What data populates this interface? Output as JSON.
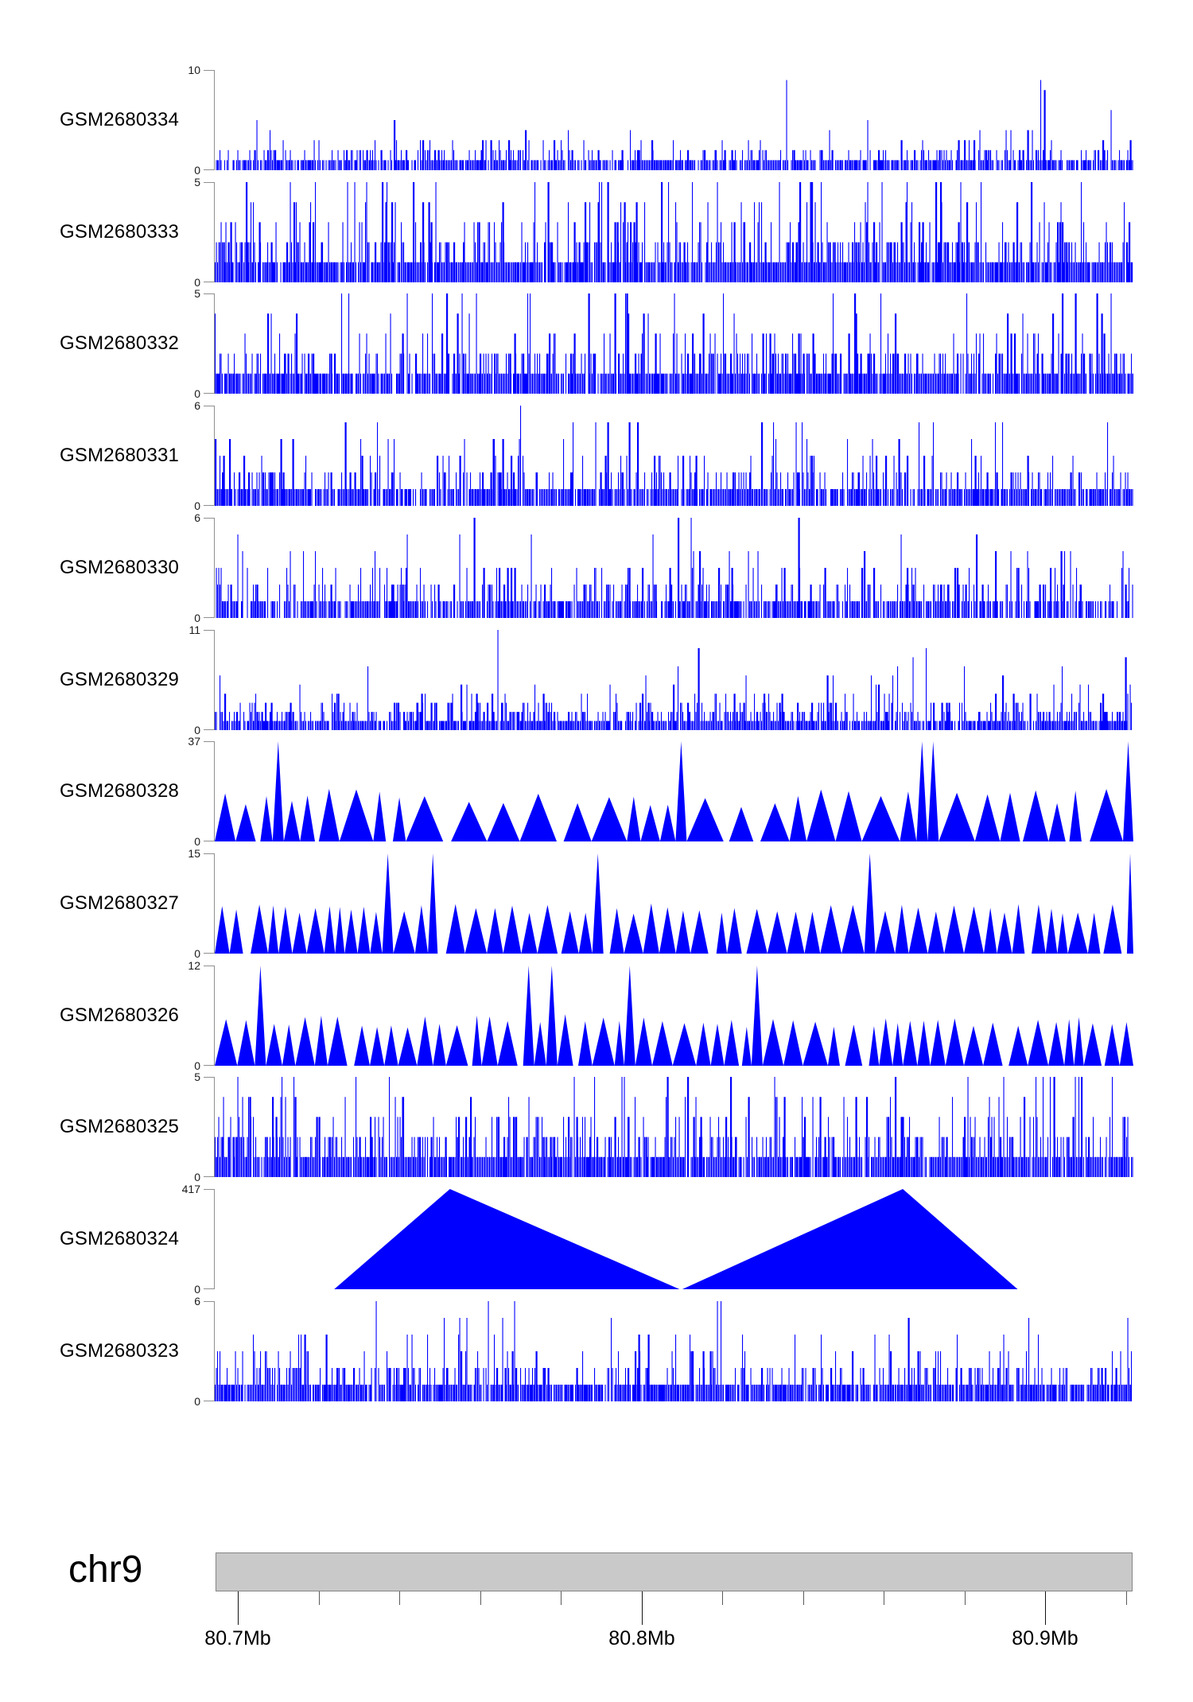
{
  "figure_title": "",
  "chart_data": {
    "type": "area",
    "subtype": "genome-coverage-tracks",
    "title": "",
    "xlabel": "",
    "ylabel": "",
    "grid": false,
    "legend": "none",
    "coverage_color": "#0000FF",
    "axis_color": "#8f8f8f",
    "label_color": "#000000",
    "ruler_fill": "#c9c9c9",
    "ruler_border": "#858585",
    "xaxis": {
      "chromosome": "chr9",
      "unit": "Mb",
      "start_mb": 80.694,
      "end_mb": 80.922,
      "major_ticks": [
        {
          "value_mb": 80.7,
          "label": "80.7Mb"
        },
        {
          "value_mb": 80.8,
          "label": "80.8Mb"
        },
        {
          "value_mb": 80.9,
          "label": "80.9Mb"
        }
      ],
      "minor_ticks_mb": [
        80.72,
        80.74,
        80.76,
        80.78,
        80.82,
        80.84,
        80.86,
        80.88,
        80.92
      ]
    },
    "yaxis_zero_label": "0",
    "tracks": [
      {
        "label": "GSM2680334",
        "ymax": 10,
        "ymax_label": "10",
        "style": "dense",
        "seed": 101,
        "zero": 0.2,
        "mean": 0.85,
        "spike_prob": 0.008
      },
      {
        "label": "GSM2680333",
        "ymax": 5,
        "ymax_label": "5",
        "style": "dense",
        "seed": 102,
        "zero": 0.08,
        "mean": 1.15,
        "spike_prob": 0.015
      },
      {
        "label": "GSM2680332",
        "ymax": 5,
        "ymax_label": "5",
        "style": "dense",
        "seed": 103,
        "zero": 0.1,
        "mean": 1.05,
        "spike_prob": 0.012
      },
      {
        "label": "GSM2680331",
        "ymax": 6,
        "ymax_label": "6",
        "style": "dense",
        "seed": 104,
        "zero": 0.14,
        "mean": 0.95,
        "spike_prob": 0.01
      },
      {
        "label": "GSM2680330",
        "ymax": 6,
        "ymax_label": "6",
        "style": "dense",
        "seed": 105,
        "zero": 0.22,
        "mean": 0.9,
        "spike_prob": 0.012
      },
      {
        "label": "GSM2680329",
        "ymax": 11,
        "ymax_label": "11",
        "style": "dense",
        "seed": 106,
        "zero": 0.12,
        "mean": 1.35,
        "spike_prob": 0.007
      },
      {
        "label": "GSM2680328",
        "ymax": 37,
        "ymax_label": "37",
        "style": "sawtooth",
        "seed": 107,
        "wmin": 14,
        "wrange": 34,
        "pmin": 0.34,
        "prange": 0.2,
        "full_prob": 0.07,
        "gap_prob": 0.25
      },
      {
        "label": "GSM2680327",
        "ymax": 15,
        "ymax_label": "15",
        "style": "sawtooth",
        "seed": 108,
        "wmin": 12,
        "wrange": 18,
        "pmin": 0.4,
        "prange": 0.1,
        "full_prob": 0.08,
        "gap_prob": 0.2
      },
      {
        "label": "GSM2680326",
        "ymax": 12,
        "ymax_label": "12",
        "style": "sawtooth",
        "seed": 109,
        "wmin": 12,
        "wrange": 20,
        "pmin": 0.38,
        "prange": 0.14,
        "full_prob": 0.09,
        "gap_prob": 0.2
      },
      {
        "label": "GSM2680325",
        "ymax": 5,
        "ymax_label": "5",
        "style": "dense",
        "seed": 110,
        "zero": 0.08,
        "mean": 1.15,
        "spike_prob": 0.018
      },
      {
        "label": "GSM2680324",
        "ymax": 417,
        "ymax_label": "417",
        "style": "big-triangles",
        "seed": 111,
        "triangles": [
          {
            "x0": 0.13,
            "apex": 0.256,
            "x1": 0.506,
            "peak": 1.0
          },
          {
            "x0": 0.509,
            "apex": 0.749,
            "x1": 0.874,
            "peak": 1.0
          }
        ]
      },
      {
        "label": "GSM2680323",
        "ymax": 6,
        "ymax_label": "6",
        "style": "dense",
        "seed": 112,
        "zero": 0.12,
        "mean": 0.9,
        "spike_prob": 0.006
      }
    ]
  }
}
